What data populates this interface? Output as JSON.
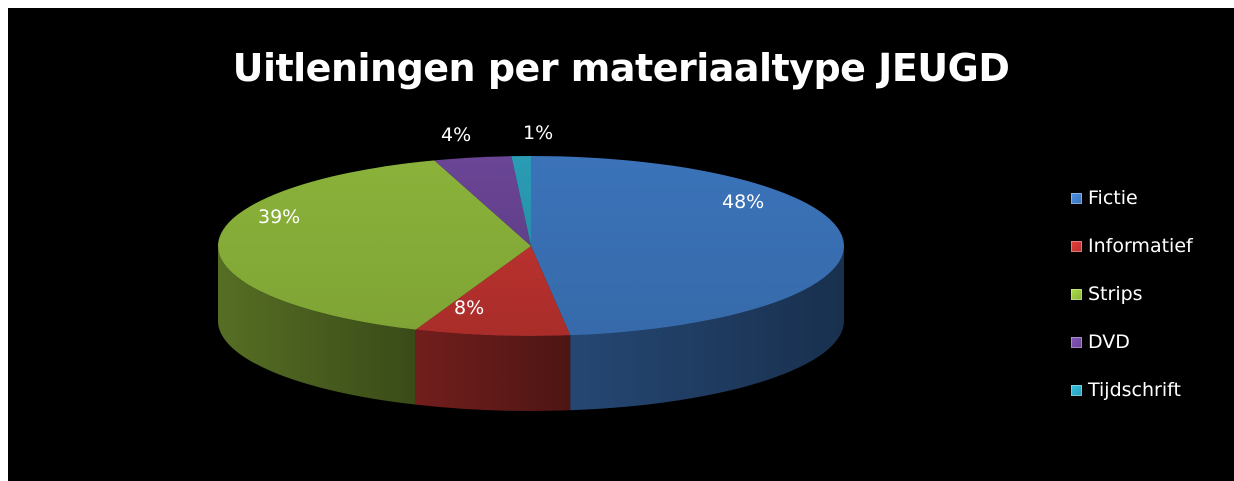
{
  "chart_data": {
    "type": "pie",
    "title": "Uitleningen per materiaaltype JEUGD",
    "categories": [
      "Fictie",
      "Informatief",
      "Strips",
      "DVD",
      "Tijdschrift"
    ],
    "values": [
      48,
      8,
      39,
      4,
      1
    ],
    "data_labels": [
      "48%",
      "8%",
      "39%",
      "4%",
      "1%"
    ],
    "colors": [
      "#3b73b9",
      "#b8312e",
      "#8ab23a",
      "#6a4596",
      "#2a9cb5"
    ],
    "legend_position": "right",
    "style": "3d"
  }
}
